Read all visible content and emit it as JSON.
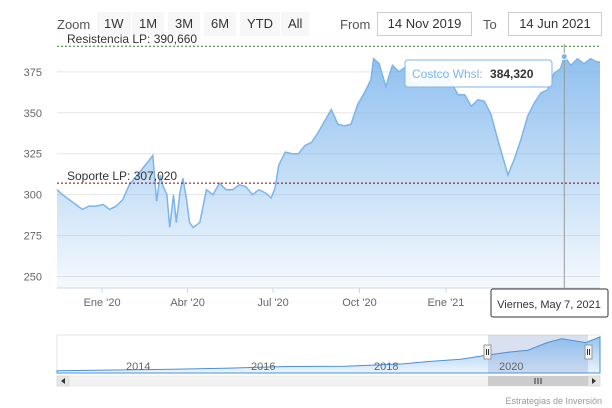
{
  "range_selector": {
    "zoom_label": "Zoom",
    "buttons": [
      "1W",
      "1M",
      "3M",
      "6M",
      "YTD",
      "All"
    ],
    "from_label": "From",
    "from_value": "14 Nov 2019",
    "to_label": "To",
    "to_value": "14 Jun 2021"
  },
  "tooltip": {
    "series_name": "Costco Whsl:",
    "value": "384,320",
    "date_label": "Viernes, May 7, 2021"
  },
  "navigator": {
    "year_labels": [
      "2014",
      "2016",
      "2018",
      "2020"
    ]
  },
  "credits": "Estrategias de Inversión",
  "colors": {
    "line": "#7cb5ec",
    "area_top": "#7cb5ec",
    "resistance": "#2e7d32",
    "support": "#8b0000"
  },
  "chart_data": {
    "type": "area",
    "x_tick_labels": [
      "Ene '20",
      "Abr '20",
      "Jul '20",
      "Oct '20",
      "Ene '21"
    ],
    "x_tick_dates": [
      "2020-01-01",
      "2020-04-01",
      "2020-07-01",
      "2020-10-01",
      "2021-01-01"
    ],
    "y_ticks": [
      250,
      275,
      300,
      325,
      350,
      375
    ],
    "ylim": [
      243,
      392
    ],
    "xlim": [
      "2019-11-14",
      "2021-06-14"
    ],
    "plot_lines": [
      {
        "label": "Resistencia LP: 390,660",
        "value": 390.66
      },
      {
        "label": "Soporte LP: 307,020",
        "value": 307.02
      }
    ],
    "series": [
      {
        "name": "Costco Whsl",
        "points": [
          [
            "2019-11-14",
            303
          ],
          [
            "2019-11-20",
            300
          ],
          [
            "2019-11-27",
            297
          ],
          [
            "2019-12-04",
            294
          ],
          [
            "2019-12-11",
            291
          ],
          [
            "2019-12-18",
            293
          ],
          [
            "2019-12-26",
            293
          ],
          [
            "2020-01-02",
            294
          ],
          [
            "2020-01-09",
            291
          ],
          [
            "2020-01-16",
            293
          ],
          [
            "2020-01-23",
            297
          ],
          [
            "2020-01-30",
            306
          ],
          [
            "2020-02-06",
            311
          ],
          [
            "2020-02-13",
            316
          ],
          [
            "2020-02-20",
            321
          ],
          [
            "2020-02-24",
            324
          ],
          [
            "2020-02-28",
            296
          ],
          [
            "2020-03-03",
            312
          ],
          [
            "2020-03-06",
            305
          ],
          [
            "2020-03-10",
            300
          ],
          [
            "2020-03-13",
            280
          ],
          [
            "2020-03-17",
            300
          ],
          [
            "2020-03-20",
            283
          ],
          [
            "2020-03-24",
            302
          ],
          [
            "2020-03-27",
            310
          ],
          [
            "2020-03-31",
            297
          ],
          [
            "2020-04-03",
            283
          ],
          [
            "2020-04-07",
            280
          ],
          [
            "2020-04-14",
            283
          ],
          [
            "2020-04-21",
            303
          ],
          [
            "2020-04-28",
            300
          ],
          [
            "2020-05-05",
            307
          ],
          [
            "2020-05-12",
            303
          ],
          [
            "2020-05-19",
            303
          ],
          [
            "2020-05-26",
            306
          ],
          [
            "2020-06-02",
            305
          ],
          [
            "2020-06-09",
            300
          ],
          [
            "2020-06-16",
            303
          ],
          [
            "2020-06-23",
            301
          ],
          [
            "2020-06-29",
            298
          ],
          [
            "2020-07-03",
            304
          ],
          [
            "2020-07-07",
            318
          ],
          [
            "2020-07-14",
            326
          ],
          [
            "2020-07-21",
            325
          ],
          [
            "2020-07-28",
            325
          ],
          [
            "2020-08-04",
            330
          ],
          [
            "2020-08-11",
            332
          ],
          [
            "2020-08-18",
            338
          ],
          [
            "2020-08-25",
            345
          ],
          [
            "2020-09-01",
            352
          ],
          [
            "2020-09-08",
            343
          ],
          [
            "2020-09-15",
            342
          ],
          [
            "2020-09-22",
            343
          ],
          [
            "2020-09-29",
            355
          ],
          [
            "2020-10-06",
            362
          ],
          [
            "2020-10-13",
            370
          ],
          [
            "2020-10-16",
            383
          ],
          [
            "2020-10-22",
            380
          ],
          [
            "2020-10-29",
            366
          ],
          [
            "2020-11-05",
            379
          ],
          [
            "2020-11-12",
            375
          ],
          [
            "2020-11-19",
            378
          ],
          [
            "2020-11-26",
            368
          ],
          [
            "2020-12-03",
            368
          ],
          [
            "2020-12-10",
            375
          ],
          [
            "2020-12-17",
            373
          ],
          [
            "2020-12-24",
            373
          ],
          [
            "2020-12-31",
            376
          ],
          [
            "2021-01-07",
            368
          ],
          [
            "2021-01-14",
            361
          ],
          [
            "2021-01-21",
            361
          ],
          [
            "2021-01-28",
            354
          ],
          [
            "2021-02-04",
            358
          ],
          [
            "2021-02-11",
            357
          ],
          [
            "2021-02-18",
            349
          ],
          [
            "2021-02-25",
            334
          ],
          [
            "2021-03-04",
            320
          ],
          [
            "2021-03-08",
            312
          ],
          [
            "2021-03-15",
            322
          ],
          [
            "2021-03-22",
            334
          ],
          [
            "2021-03-29",
            348
          ],
          [
            "2021-04-05",
            356
          ],
          [
            "2021-04-12",
            362
          ],
          [
            "2021-04-19",
            364
          ],
          [
            "2021-04-26",
            374
          ],
          [
            "2021-05-03",
            377
          ],
          [
            "2021-05-07",
            384.32
          ],
          [
            "2021-05-14",
            379
          ],
          [
            "2021-05-21",
            383
          ],
          [
            "2021-05-28",
            380
          ],
          [
            "2021-06-04",
            383
          ],
          [
            "2021-06-11",
            381
          ],
          [
            "2021-06-14",
            381
          ]
        ]
      }
    ],
    "navigator_series": [
      [
        "2012-01",
        0.06
      ],
      [
        "2013-01",
        0.08
      ],
      [
        "2014-01",
        0.1
      ],
      [
        "2015-01",
        0.13
      ],
      [
        "2016-01",
        0.17
      ],
      [
        "2017-01",
        0.18
      ],
      [
        "2018-01",
        0.24
      ],
      [
        "2018-06",
        0.3
      ],
      [
        "2019-01",
        0.36
      ],
      [
        "2019-06",
        0.46
      ],
      [
        "2019-11",
        0.55
      ],
      [
        "2020-03",
        0.6
      ],
      [
        "2020-07",
        0.8
      ],
      [
        "2020-10",
        0.9
      ],
      [
        "2021-03",
        0.8
      ],
      [
        "2021-06",
        0.95
      ]
    ]
  }
}
